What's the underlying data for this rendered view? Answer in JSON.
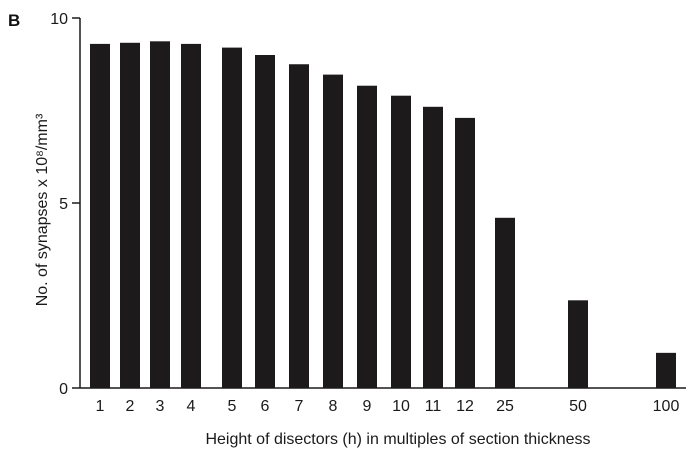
{
  "panel_label": "B",
  "colors": {
    "bar": "#1c1a1b",
    "axis": "#1a1a1a"
  },
  "chart_data": {
    "type": "bar",
    "categories": [
      "1",
      "2",
      "3",
      "4",
      "5",
      "6",
      "7",
      "8",
      "9",
      "10",
      "11",
      "12",
      "25",
      "50",
      "100"
    ],
    "values": [
      9.3,
      9.33,
      9.37,
      9.3,
      9.2,
      9.0,
      8.75,
      8.47,
      8.17,
      7.9,
      7.6,
      7.3,
      4.6,
      2.37,
      0.95
    ],
    "xlabel": "Height of disectors (h) in multiples of section thickness",
    "ylabel": "No. of synapses x 10⁸/mm³",
    "ylim": [
      0,
      10
    ],
    "yticks": [
      "0",
      "5",
      "10"
    ],
    "grid": false
  }
}
